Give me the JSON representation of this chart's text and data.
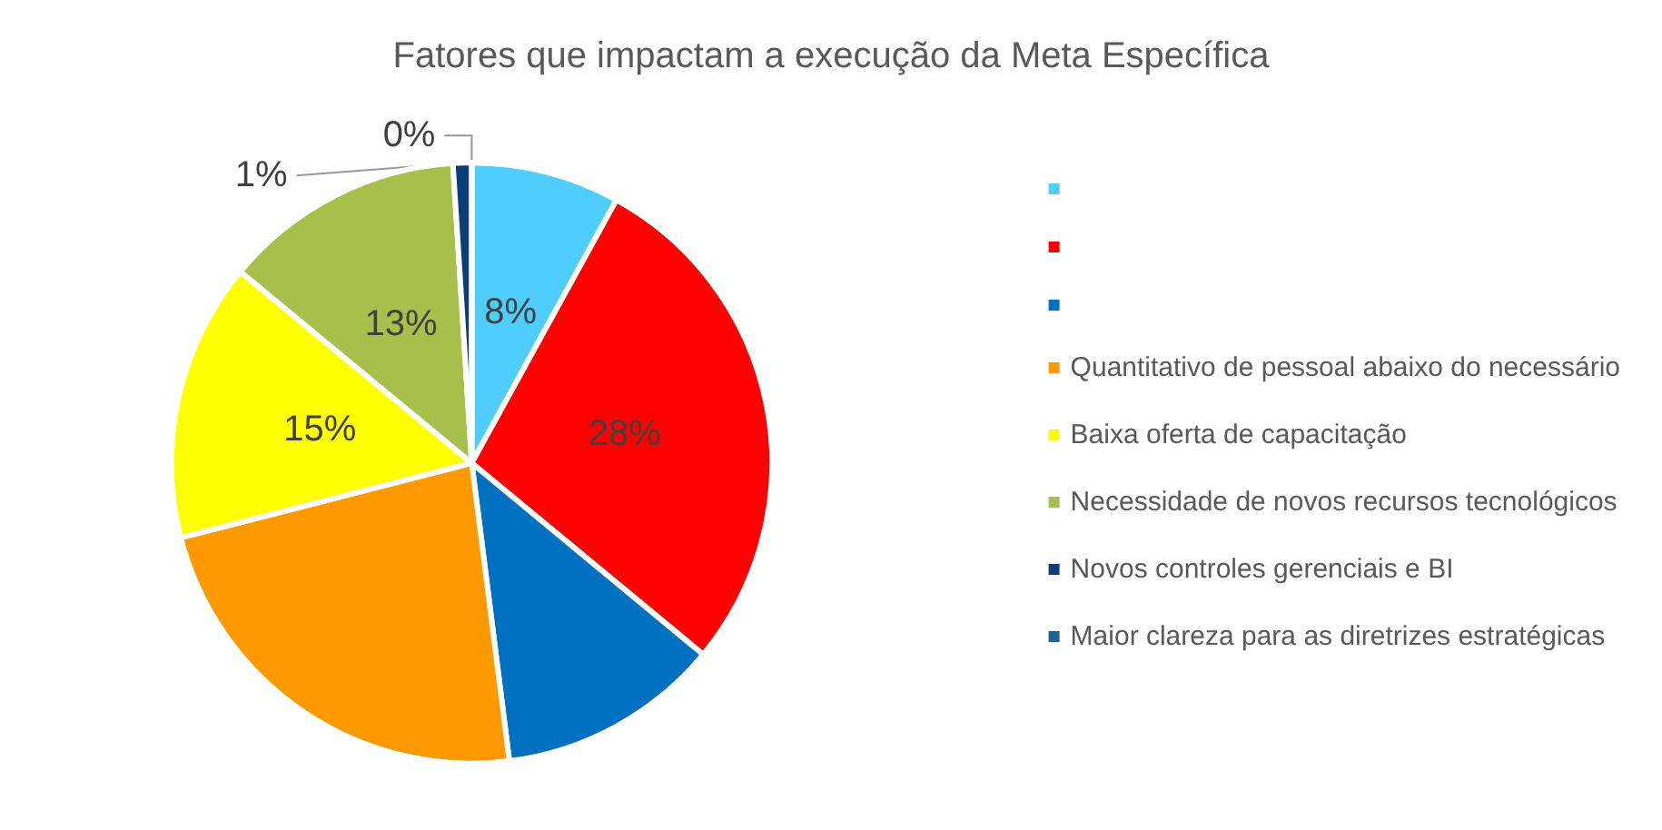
{
  "chart_data": {
    "type": "pie",
    "title": "Fatores que impactam a execução da Meta Específica",
    "categories": [
      null,
      null,
      null,
      "Quantitativo de pessoal abaixo do necessário",
      "Baixa oferta de capacitação",
      "Necessidade de novos recursos tecnológicos",
      "Novos controles gerenciais e BI",
      "Maior clareza para as diretrizes estratégicas"
    ],
    "values": [
      8,
      28,
      12,
      23,
      15,
      13,
      1,
      0
    ],
    "colors": [
      "#4fcdff",
      "#ff0000",
      "#0070c0",
      "#ff9900",
      "#ffff00",
      "#a6c04b",
      "#0b3d78",
      "#1b6394"
    ],
    "value_labels": [
      "8%",
      "28%",
      null,
      null,
      "15%",
      "13%",
      "1%",
      "0%"
    ],
    "legend": "right"
  }
}
